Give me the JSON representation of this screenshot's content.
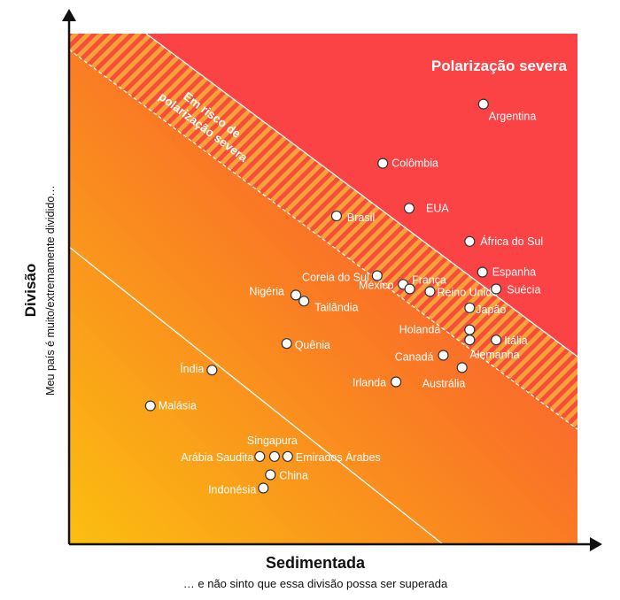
{
  "chart_data": {
    "type": "scatter",
    "xlabel": "Sedimentada",
    "xlabel_sub": "… e não sinto que essa divisão possa ser superada",
    "ylabel": "Divisão",
    "ylabel_sub": "Meu país é muito/extremamente dividido…",
    "annotations": {
      "severe": "Polarização severa",
      "risk_line1": "Em risco de",
      "risk_line2": "polarização severa"
    },
    "colors": {
      "gradient_low": "#fbbf10",
      "gradient_mid": "#fa7a24",
      "gradient_high": "#fb4545",
      "severe_zone": "#fb4245",
      "hatch_a": "#f5a53a",
      "hatch_b": "#f84b3a",
      "axis": "#111111"
    },
    "x_range": [
      0,
      100
    ],
    "y_range": [
      0,
      100
    ],
    "points": [
      {
        "name": "Argentina",
        "x": 81.5,
        "y": 86.2,
        "anchor": "start",
        "dx": 6,
        "dy": 18
      },
      {
        "name": "Colômbia",
        "x": 61.7,
        "y": 74.6,
        "anchor": "start",
        "dx": 10,
        "dy": 4
      },
      {
        "name": "EUA",
        "x": 66.9,
        "y": 65.8,
        "anchor": "start",
        "dx": 19,
        "dy": 4
      },
      {
        "name": "Brasil",
        "x": 52.6,
        "y": 64.3,
        "anchor": "start",
        "dx": 12,
        "dy": 6
      },
      {
        "name": "África do Sul",
        "x": 78.8,
        "y": 59.3,
        "anchor": "start",
        "dx": 12,
        "dy": 4
      },
      {
        "name": "Espanha",
        "x": 81.3,
        "y": 53.3,
        "anchor": "start",
        "dx": 11,
        "dy": 4
      },
      {
        "name": "Coreia do Sul",
        "x": 60.6,
        "y": 52.6,
        "anchor": "end",
        "dx": -9,
        "dy": 6
      },
      {
        "name": "França",
        "x": 65.7,
        "y": 50.9,
        "anchor": "start",
        "dx": 10,
        "dy": -1
      },
      {
        "name": "México",
        "x": 67.0,
        "y": 50.0,
        "anchor": "end",
        "dx": -18,
        "dy": 0
      },
      {
        "name": "Reino Unido",
        "x": 71.0,
        "y": 49.5,
        "anchor": "start",
        "dx": 8,
        "dy": 5
      },
      {
        "name": "Suécia",
        "x": 84.0,
        "y": 50.0,
        "anchor": "start",
        "dx": 12,
        "dy": 5
      },
      {
        "name": "Nigéria",
        "x": 44.6,
        "y": 48.8,
        "anchor": "end",
        "dx": -13,
        "dy": 0
      },
      {
        "name": "Tailândia",
        "x": 46.2,
        "y": 47.6,
        "anchor": "start",
        "dx": 12,
        "dy": 11
      },
      {
        "name": "Japão",
        "x": 78.8,
        "y": 46.3,
        "anchor": "start",
        "dx": 7,
        "dy": 6
      },
      {
        "name": "Holanda",
        "x": 78.8,
        "y": 42.0,
        "anchor": "end",
        "dx": -33,
        "dy": 4
      },
      {
        "name": "Itália",
        "x": 84.0,
        "y": 40.0,
        "anchor": "start",
        "dx": 9,
        "dy": 5
      },
      {
        "name": "Alemanha",
        "x": 78.8,
        "y": 40.0,
        "anchor": "start",
        "dx": 0,
        "dy": 21
      },
      {
        "name": "Quênia",
        "x": 42.8,
        "y": 39.3,
        "anchor": "start",
        "dx": 9,
        "dy": 6
      },
      {
        "name": "Canadá",
        "x": 73.6,
        "y": 37.0,
        "anchor": "end",
        "dx": -11,
        "dy": 6
      },
      {
        "name": "Índia",
        "x": 28.1,
        "y": 34.1,
        "anchor": "end",
        "dx": -9,
        "dy": 3
      },
      {
        "name": "Austrália",
        "x": 77.3,
        "y": 34.6,
        "anchor": "start",
        "dx": -45,
        "dy": 22
      },
      {
        "name": "Irlanda",
        "x": 64.3,
        "y": 31.8,
        "anchor": "end",
        "dx": -11,
        "dy": 5
      },
      {
        "name": "Malásia",
        "x": 16.0,
        "y": 27.1,
        "anchor": "start",
        "dx": 9,
        "dy": 4
      },
      {
        "name": "Singapura",
        "x": 40.4,
        "y": 17.2,
        "anchor": "end",
        "dx": 26,
        "dy": -14
      },
      {
        "name": "Arábia Saudita",
        "x": 37.5,
        "y": 17.2,
        "anchor": "end",
        "dx": -7,
        "dy": 5
      },
      {
        "name": "Emirados Árabes",
        "x": 43.0,
        "y": 17.2,
        "anchor": "start",
        "dx": 9,
        "dy": 5
      },
      {
        "name": "China",
        "x": 39.6,
        "y": 13.6,
        "anchor": "start",
        "dx": 10,
        "dy": 5
      },
      {
        "name": "Indonésia",
        "x": 38.2,
        "y": 11.0,
        "anchor": "end",
        "dx": -8,
        "dy": 6
      }
    ]
  }
}
